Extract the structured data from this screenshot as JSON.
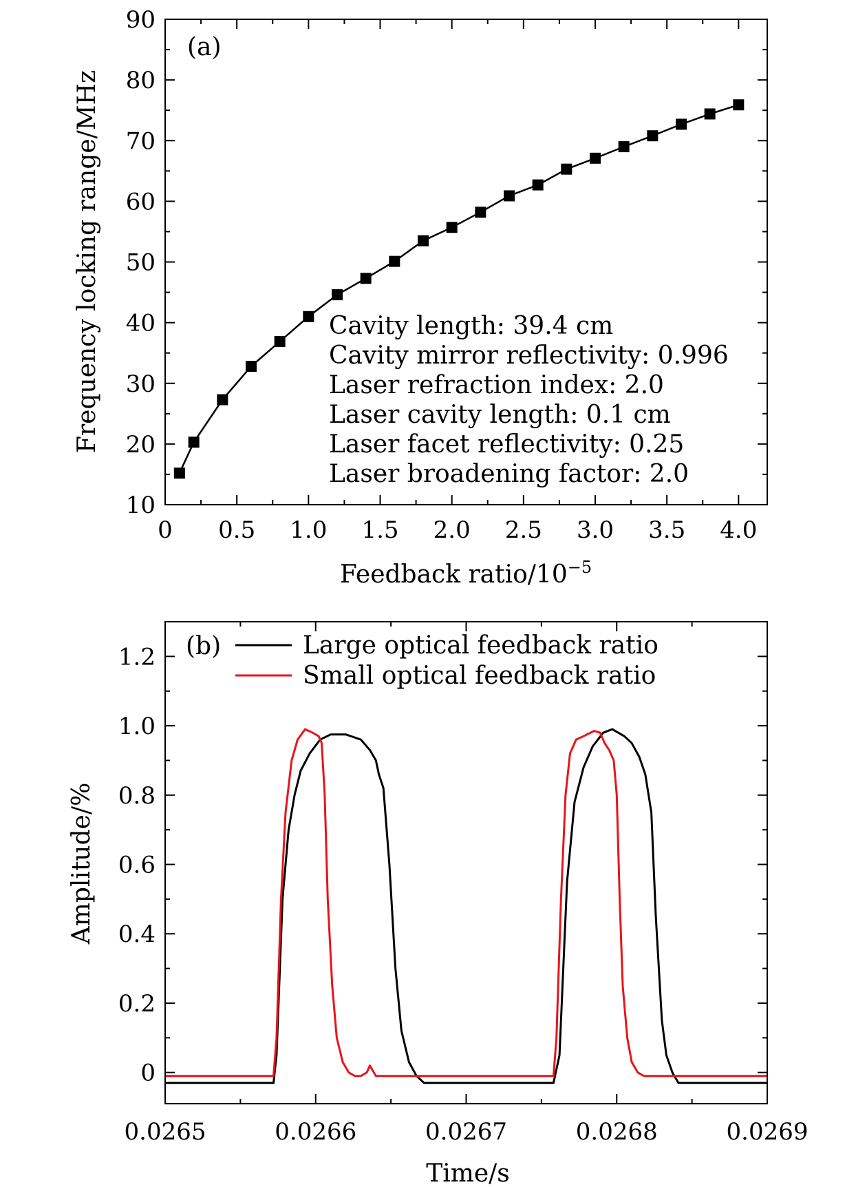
{
  "chart_data": [
    {
      "id": "a",
      "type": "line",
      "panel_label": "(a)",
      "xlabel_main": "Feedback ratio/10",
      "xlabel_exp": "−5",
      "ylabel": "Frequency locking range/MHz",
      "xlim": [
        0,
        4.2
      ],
      "ylim": [
        10,
        90
      ],
      "xticks": [
        0,
        0.5,
        1.0,
        1.5,
        2.0,
        2.5,
        3.0,
        3.5,
        4.0
      ],
      "xtick_labels": [
        "0",
        "0.5",
        "1.0",
        "1.5",
        "2.0",
        "2.5",
        "3.0",
        "3.5",
        "4.0"
      ],
      "xminor": [
        0.25,
        0.75,
        1.25,
        1.75,
        2.25,
        2.75,
        3.25,
        3.75
      ],
      "yticks": [
        10,
        20,
        30,
        40,
        50,
        60,
        70,
        80,
        90
      ],
      "ytick_labels": [
        "10",
        "20",
        "30",
        "40",
        "50",
        "60",
        "70",
        "80",
        "90"
      ],
      "yminor": [
        15,
        25,
        35,
        45,
        55,
        65,
        75,
        85
      ],
      "series": [
        {
          "name": "Frequency locking range",
          "color": "#000000",
          "marker": "square",
          "x": [
            0.1,
            0.2,
            0.4,
            0.6,
            0.8,
            1.0,
            1.2,
            1.4,
            1.6,
            1.8,
            2.0,
            2.2,
            2.4,
            2.6,
            2.8,
            3.0,
            3.2,
            3.4,
            3.6,
            3.8,
            4.0
          ],
          "y": [
            15.2,
            20.3,
            27.3,
            32.8,
            36.9,
            41.0,
            44.6,
            47.3,
            50.1,
            53.5,
            55.7,
            58.2,
            60.9,
            62.7,
            65.3,
            67.1,
            69.0,
            70.8,
            72.7,
            74.4,
            75.9
          ]
        }
      ],
      "annotations": [
        "Cavity length: 39.4 cm",
        "Cavity mirror reflectivity: 0.996",
        "Laser refraction index: 2.0",
        "Laser cavity length: 0.1 cm",
        "Laser facet reflectivity: 0.25",
        "Laser broadening factor: 2.0"
      ]
    },
    {
      "id": "b",
      "type": "line",
      "panel_label": "(b)",
      "xlabel": "Time/s",
      "ylabel": "Amplitude/%",
      "xlim": [
        0.0265,
        0.0269
      ],
      "ylim": [
        -0.09,
        1.3
      ],
      "xticks": [
        0.0265,
        0.0266,
        0.0267,
        0.0268,
        0.0269
      ],
      "xtick_labels": [
        "0.0265",
        "0.0266",
        "0.0267",
        "0.0268",
        "0.0269"
      ],
      "xminor": [
        0.02655,
        0.02665,
        0.02675,
        0.02685
      ],
      "yticks": [
        0,
        0.2,
        0.4,
        0.6,
        0.8,
        1.0,
        1.2
      ],
      "ytick_labels": [
        "0",
        "0.2",
        "0.4",
        "0.6",
        "0.8",
        "1.0",
        "1.2"
      ],
      "yminor": [
        0.1,
        0.3,
        0.5,
        0.7,
        0.9,
        1.1
      ],
      "legend_position": "top-center",
      "series": [
        {
          "name": "Large optical feedback ratio",
          "color": "#000000",
          "x": [
            0.0265,
            0.026572,
            0.026574,
            0.026578,
            0.026582,
            0.026586,
            0.02659,
            0.026596,
            0.026603,
            0.02661,
            0.02662,
            0.02663,
            0.026636,
            0.02664,
            0.026642,
            0.026645,
            0.026649,
            0.026653,
            0.026657,
            0.026662,
            0.026667,
            0.026672,
            0.026676,
            0.026678,
            0.02668,
            0.026683,
            0.026686,
            0.026689,
            0.026694,
            0.0267,
            0.02671,
            0.026728,
            0.026758,
            0.026762,
            0.026767,
            0.026772,
            0.026778,
            0.026784,
            0.026791,
            0.026797,
            0.026805,
            0.02681,
            0.026815,
            0.026819,
            0.026823,
            0.026826,
            0.026828,
            0.02683,
            0.026833,
            0.026837,
            0.026841,
            0.026845,
            0.02685,
            0.0269
          ],
          "y": [
            -0.03,
            -0.03,
            0.05,
            0.5,
            0.7,
            0.8,
            0.87,
            0.92,
            0.96,
            0.975,
            0.975,
            0.96,
            0.93,
            0.9,
            0.86,
            0.82,
            0.6,
            0.3,
            0.12,
            0.03,
            -0.01,
            -0.03,
            -0.03,
            -0.03,
            -0.03,
            -0.03,
            -0.03,
            -0.03,
            -0.03,
            -0.03,
            -0.03,
            -0.03,
            -0.03,
            0.05,
            0.55,
            0.78,
            0.88,
            0.94,
            0.98,
            0.99,
            0.97,
            0.95,
            0.91,
            0.86,
            0.75,
            0.45,
            0.3,
            0.15,
            0.05,
            0.0,
            -0.03,
            -0.03,
            -0.03,
            -0.03
          ]
        },
        {
          "name": "Small optical feedback ratio",
          "color": "#e8141b",
          "x": [
            0.0265,
            0.026572,
            0.026574,
            0.026577,
            0.02658,
            0.026584,
            0.026588,
            0.026593,
            0.026598,
            0.026602,
            0.026604,
            0.026606,
            0.026608,
            0.026611,
            0.026614,
            0.026618,
            0.026622,
            0.026626,
            0.02663,
            0.026634,
            0.026636,
            0.02664,
            0.02665,
            0.026676,
            0.026758,
            0.02676,
            0.026763,
            0.026766,
            0.026769,
            0.026773,
            0.026778,
            0.026785,
            0.026789,
            0.026792,
            0.026795,
            0.026798,
            0.0268,
            0.026802,
            0.026804,
            0.026807,
            0.02681,
            0.026814,
            0.026818,
            0.026822,
            0.026825,
            0.02683,
            0.0269
          ],
          "y": [
            -0.01,
            -0.01,
            0.1,
            0.5,
            0.75,
            0.9,
            0.96,
            0.99,
            0.98,
            0.97,
            0.95,
            0.8,
            0.5,
            0.25,
            0.1,
            0.03,
            0.0,
            -0.01,
            -0.01,
            0.0,
            0.02,
            -0.01,
            -0.01,
            -0.01,
            -0.01,
            0.1,
            0.5,
            0.8,
            0.92,
            0.96,
            0.97,
            0.985,
            0.98,
            0.95,
            0.93,
            0.9,
            0.8,
            0.5,
            0.25,
            0.1,
            0.03,
            0.0,
            -0.01,
            -0.01,
            -0.01,
            -0.01,
            -0.01
          ]
        }
      ]
    }
  ]
}
